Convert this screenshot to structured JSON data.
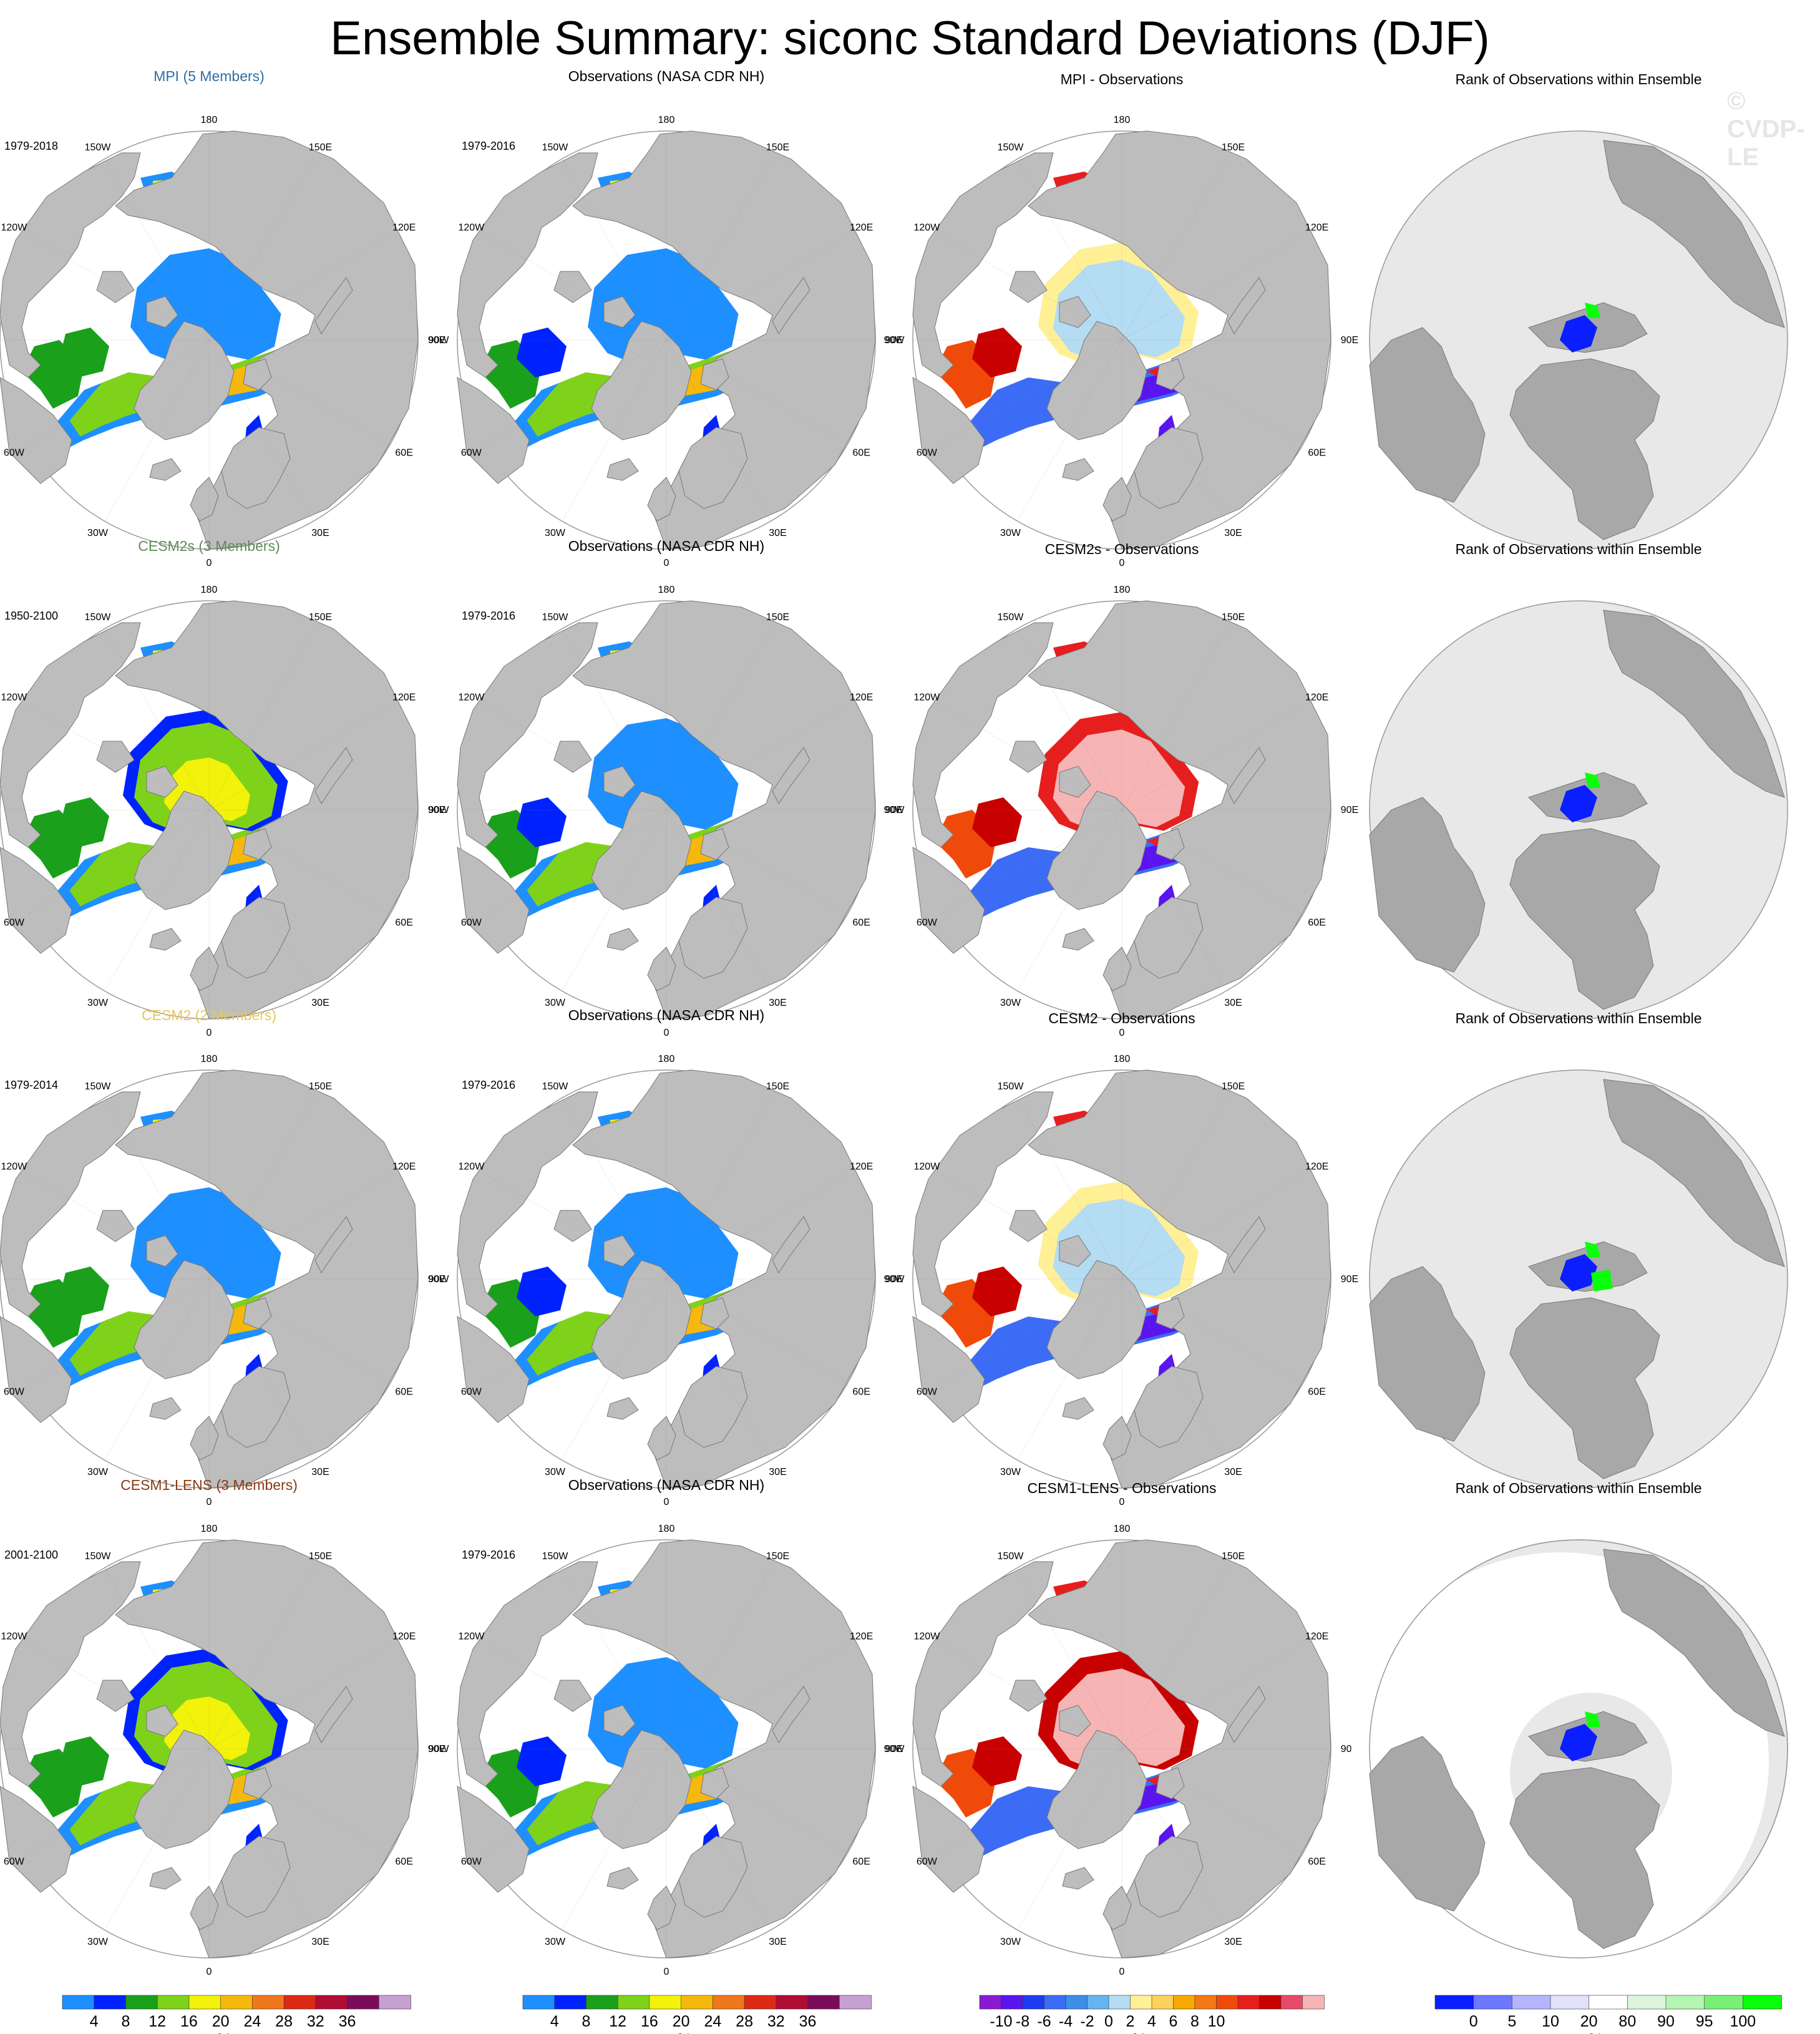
{
  "title": "Ensemble Summary: siconc Standard Deviations (DJF)",
  "watermark": "© CVDP-LE",
  "colors": {
    "land": "#bdbdbd",
    "land_rank": "#a8a8a8",
    "rank_background": "#e8e8e8",
    "ocean": "#ffffff",
    "grid": "#888888",
    "std_palette": [
      "#1e8fff",
      "#0022ff",
      "#1aa01a",
      "#7fd21a",
      "#f2f20a",
      "#f6b80c",
      "#f0771a",
      "#dc2a14",
      "#b00c34",
      "#7a0c5a",
      "#c7a0d2"
    ],
    "diff_palette": [
      "#8a1ad2",
      "#5a14f0",
      "#1e3cf0",
      "#3c6cf5",
      "#3c8ee8",
      "#64b4f0",
      "#b4dcf2",
      "#fff096",
      "#fcd25a",
      "#f8a800",
      "#f47814",
      "#f04a0a",
      "#e61e1e",
      "#c80000",
      "#e84a6a",
      "#f6b4b4"
    ],
    "rank_palette": [
      "#0a1eff",
      "#6e78ff",
      "#b4b4ff",
      "#e1e1fa",
      "#ffffff",
      "#dcf5dc",
      "#b4f5b4",
      "#78f078",
      "#0aff0a"
    ]
  },
  "rows": [
    {
      "model": "MPI (5 Members)",
      "model_color": "#2e6fa4",
      "model_period": "1979-2018",
      "obs": "Observations (NASA CDR NH)",
      "obs_period": "1979-2016",
      "diff": "MPI - Observations",
      "rank": "Rank of Observations within Ensemble",
      "central_pattern": "blue",
      "diff_pattern": "light"
    },
    {
      "model": "CESM2s (3 Members)",
      "model_color": "#5f8c58",
      "model_period": "1950-2100",
      "obs": "Observations (NASA CDR NH)",
      "obs_period": "1979-2016",
      "diff": "CESM2s - Observations",
      "rank": "Rank of Observations within Ensemble",
      "central_pattern": "yellow",
      "diff_pattern": "red"
    },
    {
      "model": "CESM2 (2 Members)",
      "model_color": "#e6c85a",
      "model_period": "1979-2014",
      "obs": "Observations (NASA CDR NH)",
      "obs_period": "1979-2016",
      "diff": "CESM2 - Observations",
      "rank": "Rank of Observations within Ensemble",
      "central_pattern": "blue",
      "diff_pattern": "light"
    },
    {
      "model": "CESM1-LENS (3 Members)",
      "model_color": "#8a3a14",
      "model_period": "2001-2100",
      "obs": "Observations (NASA CDR NH)",
      "obs_period": "1979-2016",
      "diff": "CESM1-LENS - Observations",
      "rank": "Rank of Observations within Ensemble",
      "central_pattern": "yellow",
      "diff_pattern": "pink"
    }
  ],
  "longitude_labels": {
    "top": "180",
    "bottom": "0",
    "left": "90W",
    "right": "90E",
    "upper_left": "150W",
    "upper_right": "150E",
    "mid_upper_left": "120W",
    "mid_upper_right": "120E",
    "mid_lower_left": "60W",
    "mid_lower_right": "60E",
    "lower_left": "30W",
    "lower_right": "30E"
  },
  "colorbars": [
    {
      "id": "model",
      "unit": "%",
      "ticks": [
        "4",
        "8",
        "12",
        "16",
        "20",
        "24",
        "28",
        "32",
        "36"
      ]
    },
    {
      "id": "obs",
      "unit": "%",
      "ticks": [
        "4",
        "8",
        "12",
        "16",
        "20",
        "24",
        "28",
        "32",
        "36"
      ]
    },
    {
      "id": "diff",
      "unit": "%",
      "ticks": [
        "-10",
        "-8",
        "-6",
        "-4",
        "-2",
        "0",
        "2",
        "4",
        "6",
        "8",
        "10"
      ]
    },
    {
      "id": "rank",
      "unit": "%",
      "ticks": [
        "0",
        "5",
        "10",
        "20",
        "80",
        "90",
        "95",
        "100"
      ]
    }
  ]
}
